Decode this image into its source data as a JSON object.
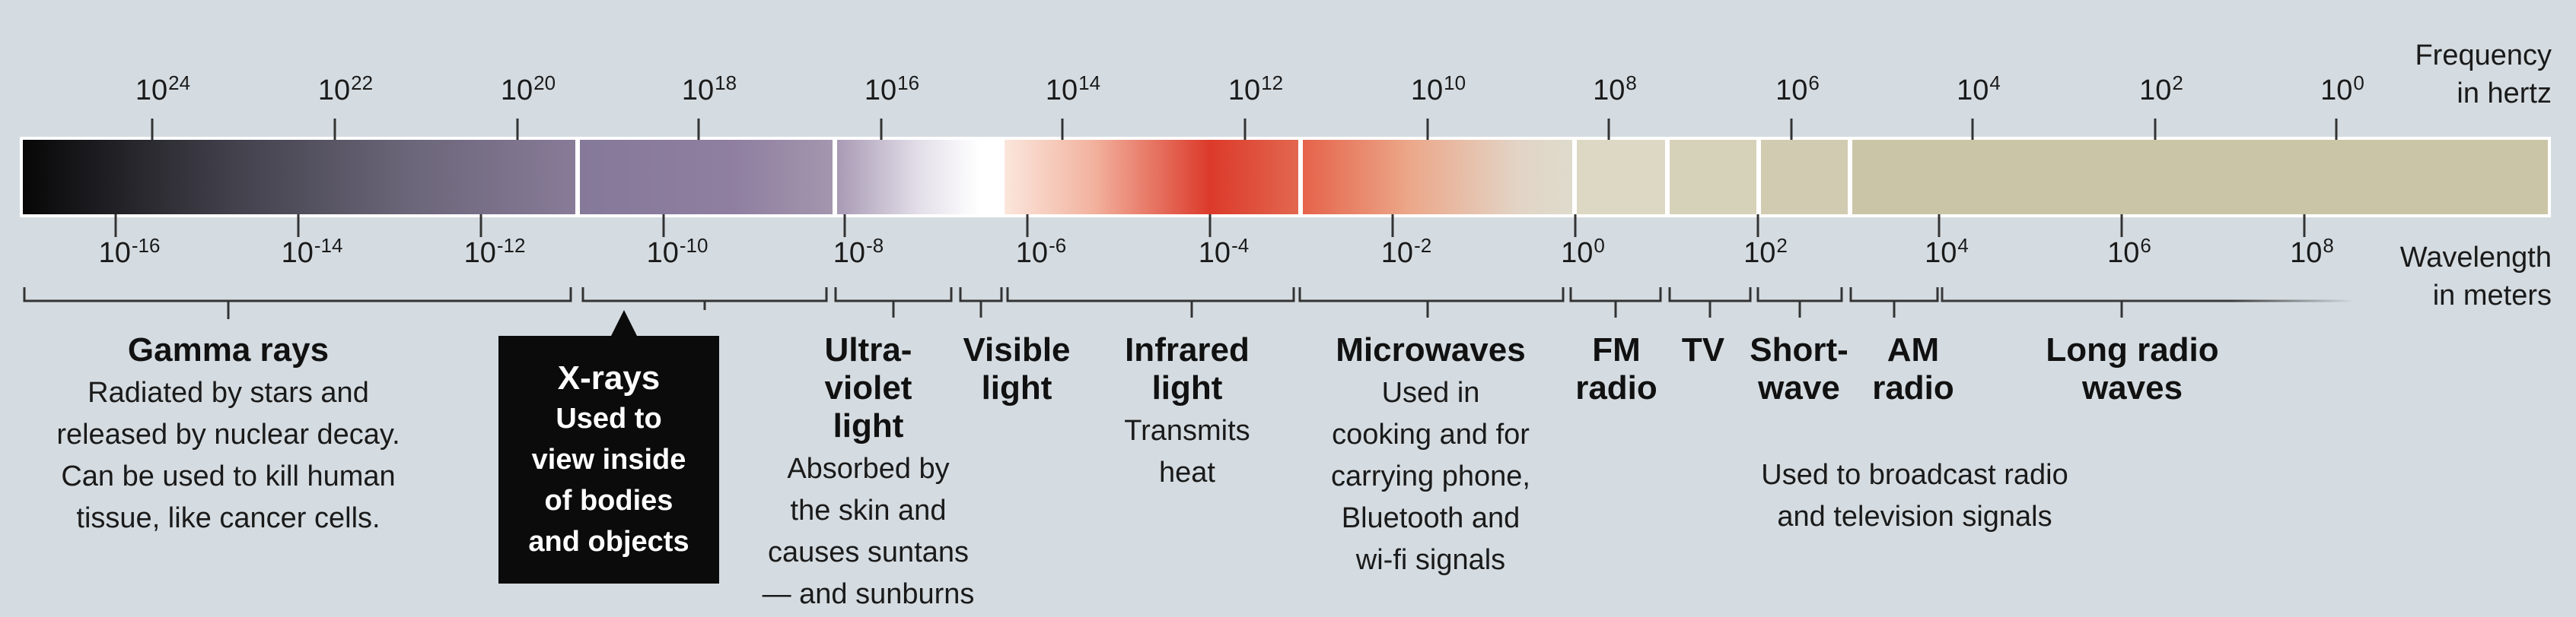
{
  "frequency_axis": {
    "title_line1": "Frequency",
    "title_line2": "in hertz",
    "labels": [
      {
        "base": "10",
        "exp": "24"
      },
      {
        "base": "10",
        "exp": "22"
      },
      {
        "base": "10",
        "exp": "20"
      },
      {
        "base": "10",
        "exp": "18"
      },
      {
        "base": "10",
        "exp": "16"
      },
      {
        "base": "10",
        "exp": "14"
      },
      {
        "base": "10",
        "exp": "12"
      },
      {
        "base": "10",
        "exp": "10"
      },
      {
        "base": "10",
        "exp": "8"
      },
      {
        "base": "10",
        "exp": "6"
      },
      {
        "base": "10",
        "exp": "4"
      },
      {
        "base": "10",
        "exp": "2"
      },
      {
        "base": "10",
        "exp": "0"
      }
    ]
  },
  "wavelength_axis": {
    "title_line1": "Wavelength",
    "title_line2": "in meters",
    "labels": [
      {
        "base": "10",
        "exp": "-16"
      },
      {
        "base": "10",
        "exp": "-14"
      },
      {
        "base": "10",
        "exp": "-12"
      },
      {
        "base": "10",
        "exp": "-10"
      },
      {
        "base": "10",
        "exp": "-8"
      },
      {
        "base": "10",
        "exp": "-6"
      },
      {
        "base": "10",
        "exp": "-4"
      },
      {
        "base": "10",
        "exp": "-2"
      },
      {
        "base": "10",
        "exp": "0"
      },
      {
        "base": "10",
        "exp": "2"
      },
      {
        "base": "10",
        "exp": "4"
      },
      {
        "base": "10",
        "exp": "6"
      },
      {
        "base": "10",
        "exp": "8"
      }
    ]
  },
  "bands": {
    "gamma": {
      "name": "Gamma rays",
      "desc": [
        "Radiated by stars and",
        "released by nuclear decay.",
        "Can be used to kill human",
        "tissue, like cancer cells."
      ]
    },
    "xray": {
      "name": "X-rays",
      "desc": [
        "Used to",
        "view inside",
        "of bodies",
        "and objects"
      ]
    },
    "uv": {
      "name": [
        "Ultra-",
        "violet",
        "light"
      ],
      "desc": [
        "Absorbed by",
        "the skin and",
        "causes suntans",
        "— and sunburns"
      ]
    },
    "visible": {
      "name": [
        "Visible",
        "light"
      ]
    },
    "infrared": {
      "name": [
        "Infrared",
        "light"
      ],
      "desc": [
        "Transmits",
        "heat"
      ]
    },
    "microwaves": {
      "name": "Microwaves",
      "desc": [
        "Used in",
        "cooking and for",
        "carrying phone,",
        "Bluetooth and",
        "wi-fi signals"
      ]
    },
    "fm": {
      "name": [
        "FM",
        "radio"
      ]
    },
    "tv": {
      "name": "TV"
    },
    "shortwave": {
      "name": [
        "Short-",
        "wave"
      ]
    },
    "am": {
      "name": [
        "AM",
        "radio"
      ]
    },
    "longradio": {
      "name": [
        "Long radio",
        "waves"
      ]
    },
    "radio_shared_desc": [
      "Used to broadcast radio",
      "and television signals"
    ]
  },
  "colors": {
    "background": "#d5dce1",
    "gamma_start": "#0a0a0a",
    "gamma_end": "#8a7d9b",
    "infrared_peak": "#dc3a2a",
    "radio": "#cbc5a7",
    "xray_box": "#0b0b0b"
  }
}
